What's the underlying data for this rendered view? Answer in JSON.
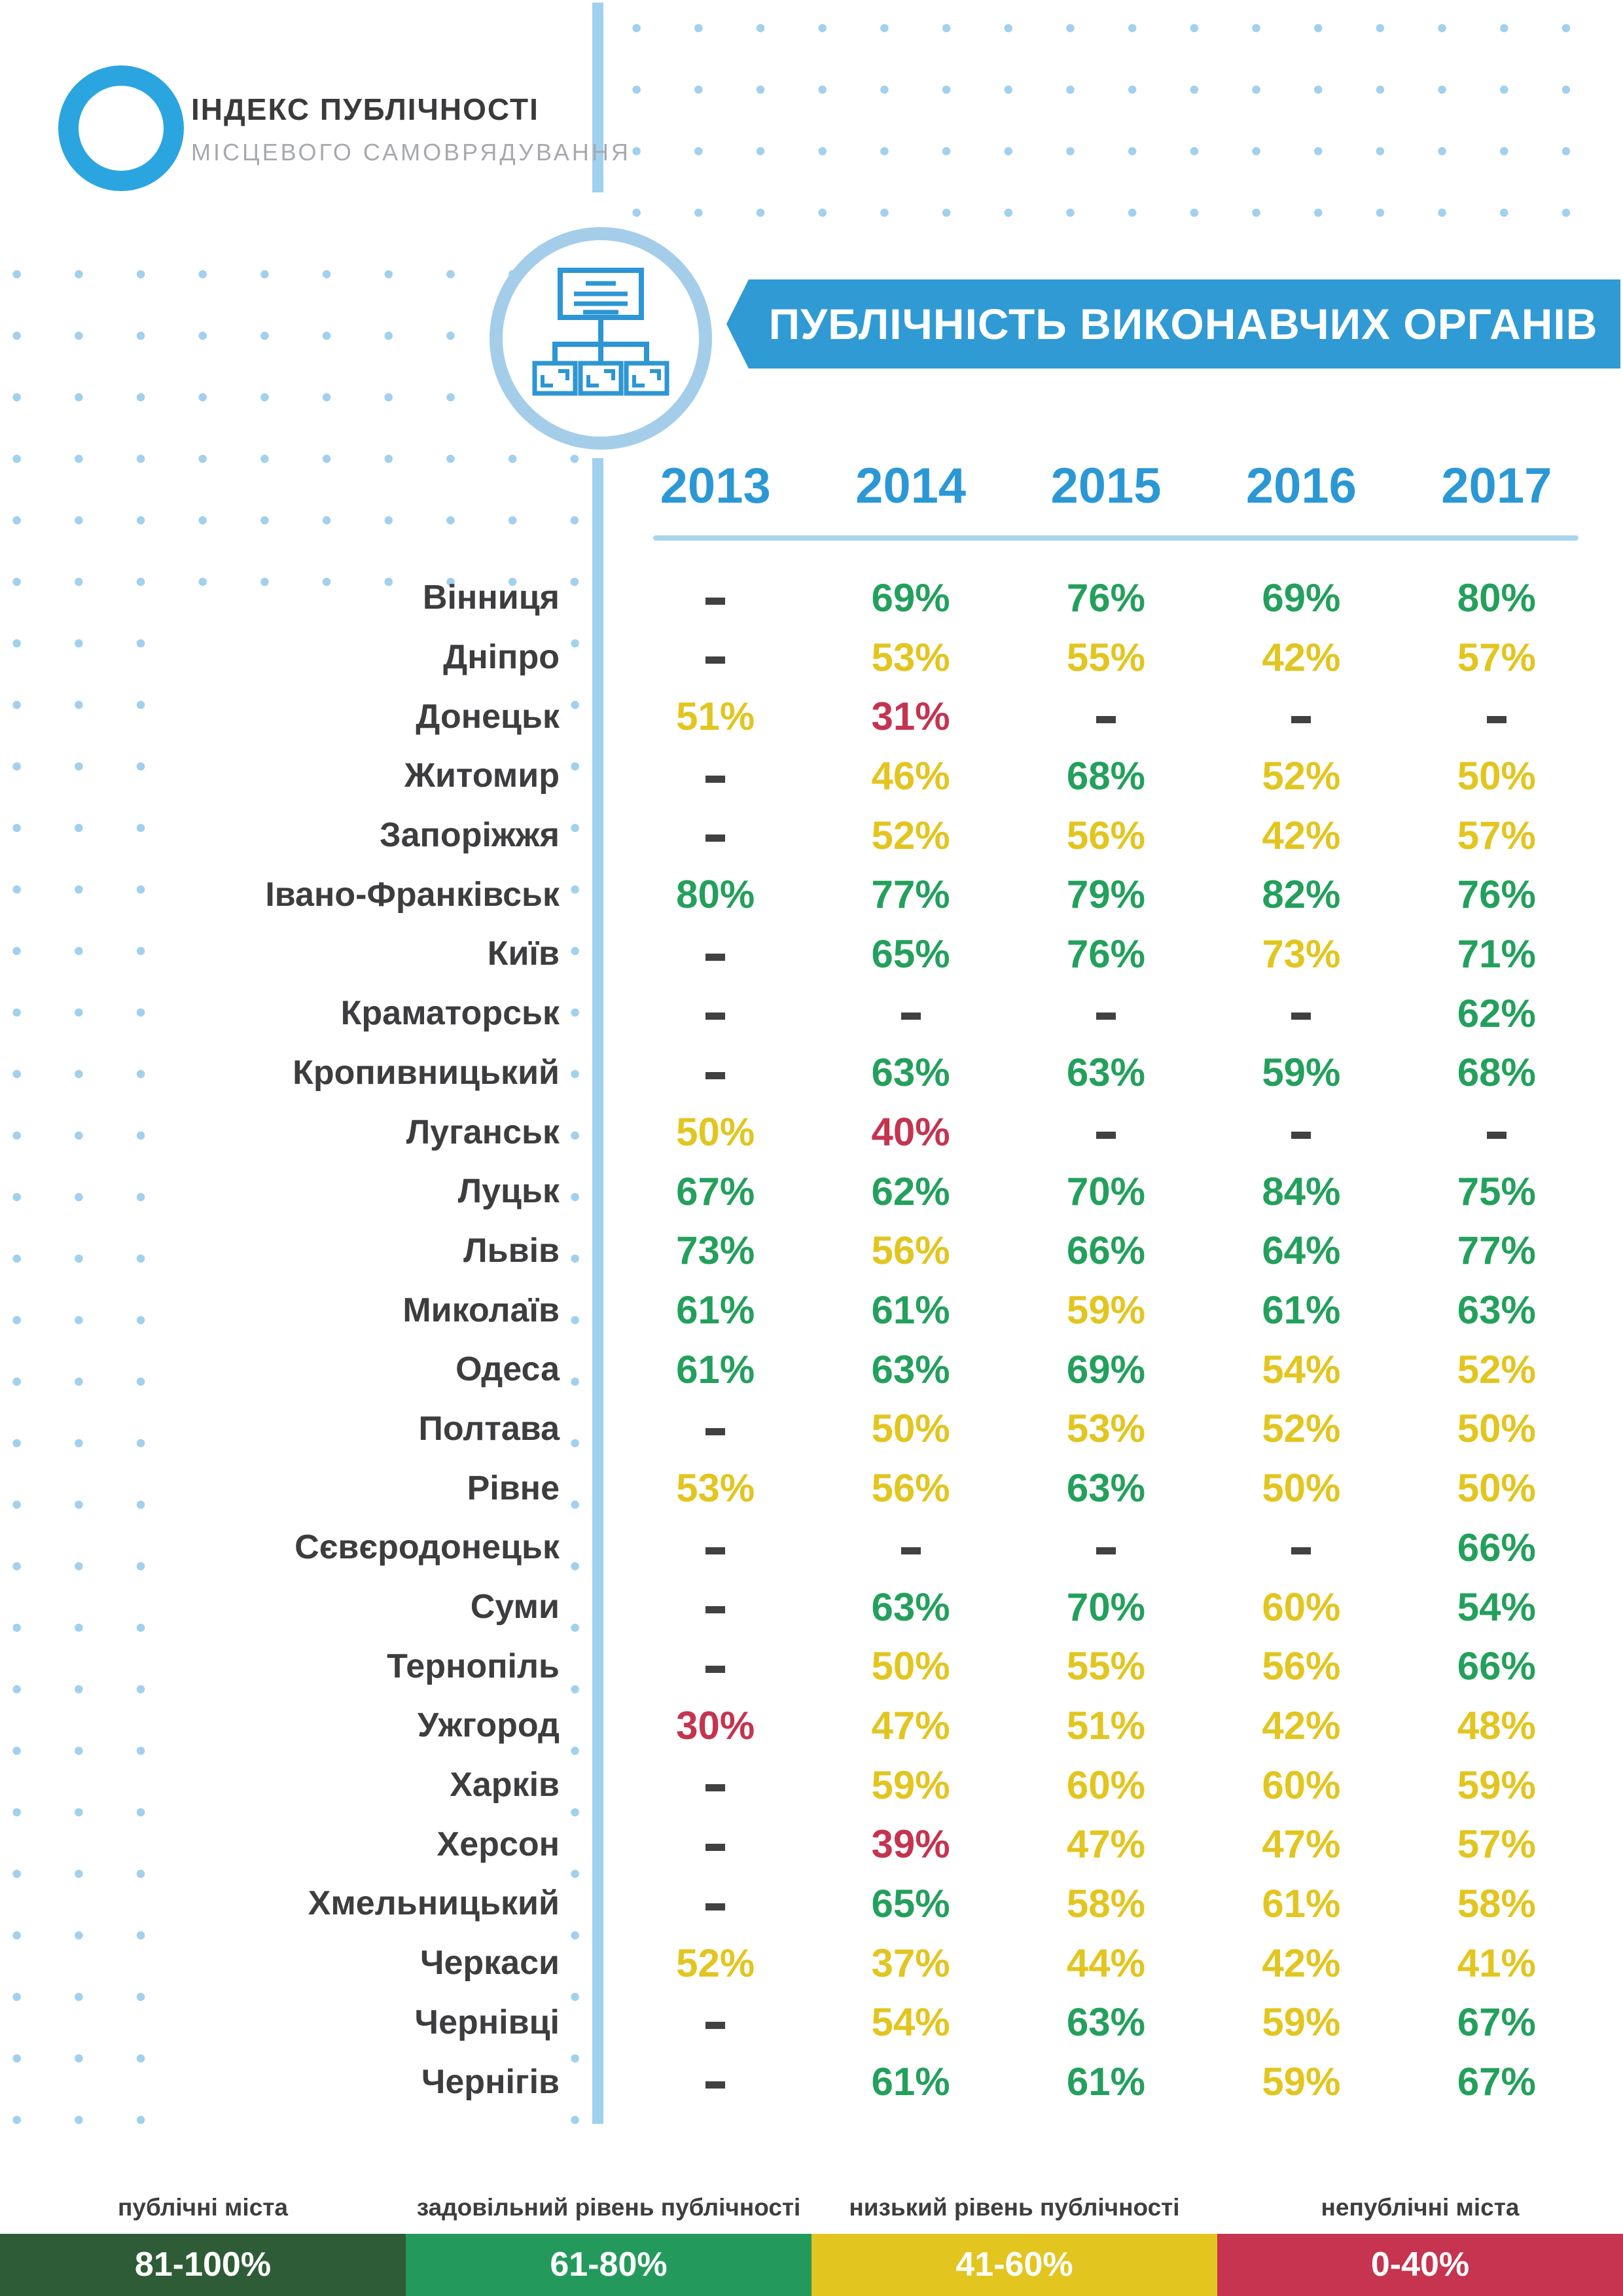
{
  "logo": {
    "line1": "ІНДЕКС ПУБЛІЧНОСТІ",
    "line2": "МІСЦЕВОГО САМОВРЯДУВАННЯ"
  },
  "banner": {
    "title": "ПУБЛІЧНІСТЬ ВИКОНАВЧИХ ОРГАНІВ"
  },
  "table": {
    "years": [
      "2013",
      "2014",
      "2015",
      "2016",
      "2017"
    ],
    "rows": [
      {
        "city": "Вінниця",
        "cells": [
          {
            "v": "-",
            "c": "dash"
          },
          {
            "v": "69%",
            "c": "green"
          },
          {
            "v": "76%",
            "c": "green"
          },
          {
            "v": "69%",
            "c": "green"
          },
          {
            "v": "80%",
            "c": "green"
          }
        ]
      },
      {
        "city": "Дніпро",
        "cells": [
          {
            "v": "-",
            "c": "dash"
          },
          {
            "v": "53%",
            "c": "yellow"
          },
          {
            "v": "55%",
            "c": "yellow"
          },
          {
            "v": "42%",
            "c": "yellow"
          },
          {
            "v": "57%",
            "c": "yellow"
          }
        ]
      },
      {
        "city": "Донецьк",
        "cells": [
          {
            "v": "51%",
            "c": "yellow"
          },
          {
            "v": "31%",
            "c": "red"
          },
          {
            "v": "-",
            "c": "dash"
          },
          {
            "v": "-",
            "c": "dash"
          },
          {
            "v": "-",
            "c": "dash"
          }
        ]
      },
      {
        "city": "Житомир",
        "cells": [
          {
            "v": "-",
            "c": "dash"
          },
          {
            "v": "46%",
            "c": "yellow"
          },
          {
            "v": "68%",
            "c": "green"
          },
          {
            "v": "52%",
            "c": "yellow"
          },
          {
            "v": "50%",
            "c": "yellow"
          }
        ]
      },
      {
        "city": "Запоріжжя",
        "cells": [
          {
            "v": "-",
            "c": "dash"
          },
          {
            "v": "52%",
            "c": "yellow"
          },
          {
            "v": "56%",
            "c": "yellow"
          },
          {
            "v": "42%",
            "c": "yellow"
          },
          {
            "v": "57%",
            "c": "yellow"
          }
        ]
      },
      {
        "city": "Івано-Франківськ",
        "cells": [
          {
            "v": "80%",
            "c": "green"
          },
          {
            "v": "77%",
            "c": "green"
          },
          {
            "v": "79%",
            "c": "green"
          },
          {
            "v": "82%",
            "c": "green"
          },
          {
            "v": "76%",
            "c": "green"
          }
        ]
      },
      {
        "city": "Київ",
        "cells": [
          {
            "v": "-",
            "c": "dash"
          },
          {
            "v": "65%",
            "c": "green"
          },
          {
            "v": "76%",
            "c": "green"
          },
          {
            "v": "73%",
            "c": "yellow"
          },
          {
            "v": "71%",
            "c": "green"
          }
        ]
      },
      {
        "city": "Краматорськ",
        "cells": [
          {
            "v": "-",
            "c": "dash"
          },
          {
            "v": "-",
            "c": "dash"
          },
          {
            "v": "-",
            "c": "dash"
          },
          {
            "v": "-",
            "c": "dash"
          },
          {
            "v": "62%",
            "c": "green"
          }
        ]
      },
      {
        "city": "Кропивницький",
        "cells": [
          {
            "v": "-",
            "c": "dash"
          },
          {
            "v": "63%",
            "c": "green"
          },
          {
            "v": "63%",
            "c": "green"
          },
          {
            "v": "59%",
            "c": "green"
          },
          {
            "v": "68%",
            "c": "green"
          }
        ]
      },
      {
        "city": "Луганськ",
        "cells": [
          {
            "v": "50%",
            "c": "yellow"
          },
          {
            "v": "40%",
            "c": "red"
          },
          {
            "v": "-",
            "c": "dash"
          },
          {
            "v": "-",
            "c": "dash"
          },
          {
            "v": "-",
            "c": "dash"
          }
        ]
      },
      {
        "city": "Луцьк",
        "cells": [
          {
            "v": "67%",
            "c": "green"
          },
          {
            "v": "62%",
            "c": "green"
          },
          {
            "v": "70%",
            "c": "green"
          },
          {
            "v": "84%",
            "c": "green"
          },
          {
            "v": "75%",
            "c": "green"
          }
        ]
      },
      {
        "city": "Львів",
        "cells": [
          {
            "v": "73%",
            "c": "green"
          },
          {
            "v": "56%",
            "c": "yellow"
          },
          {
            "v": "66%",
            "c": "green"
          },
          {
            "v": "64%",
            "c": "green"
          },
          {
            "v": "77%",
            "c": "green"
          }
        ]
      },
      {
        "city": "Миколаїв",
        "cells": [
          {
            "v": "61%",
            "c": "green"
          },
          {
            "v": "61%",
            "c": "green"
          },
          {
            "v": "59%",
            "c": "yellow"
          },
          {
            "v": "61%",
            "c": "green"
          },
          {
            "v": "63%",
            "c": "green"
          }
        ]
      },
      {
        "city": "Одеса",
        "cells": [
          {
            "v": "61%",
            "c": "green"
          },
          {
            "v": "63%",
            "c": "green"
          },
          {
            "v": "69%",
            "c": "green"
          },
          {
            "v": "54%",
            "c": "yellow"
          },
          {
            "v": "52%",
            "c": "yellow"
          }
        ]
      },
      {
        "city": "Полтава",
        "cells": [
          {
            "v": "-",
            "c": "dash"
          },
          {
            "v": "50%",
            "c": "yellow"
          },
          {
            "v": "53%",
            "c": "yellow"
          },
          {
            "v": "52%",
            "c": "yellow"
          },
          {
            "v": "50%",
            "c": "yellow"
          }
        ]
      },
      {
        "city": "Рівне",
        "cells": [
          {
            "v": "53%",
            "c": "yellow"
          },
          {
            "v": "56%",
            "c": "yellow"
          },
          {
            "v": "63%",
            "c": "green"
          },
          {
            "v": "50%",
            "c": "yellow"
          },
          {
            "v": "50%",
            "c": "yellow"
          }
        ]
      },
      {
        "city": "Сєвєродонецьк",
        "cells": [
          {
            "v": "-",
            "c": "dash"
          },
          {
            "v": "-",
            "c": "dash"
          },
          {
            "v": "-",
            "c": "dash"
          },
          {
            "v": "-",
            "c": "dash"
          },
          {
            "v": "66%",
            "c": "green"
          }
        ]
      },
      {
        "city": "Суми",
        "cells": [
          {
            "v": "-",
            "c": "dash"
          },
          {
            "v": "63%",
            "c": "green"
          },
          {
            "v": "70%",
            "c": "green"
          },
          {
            "v": "60%",
            "c": "yellow"
          },
          {
            "v": "54%",
            "c": "green"
          }
        ]
      },
      {
        "city": "Тернопіль",
        "cells": [
          {
            "v": "-",
            "c": "dash"
          },
          {
            "v": "50%",
            "c": "yellow"
          },
          {
            "v": "55%",
            "c": "yellow"
          },
          {
            "v": "56%",
            "c": "yellow"
          },
          {
            "v": "66%",
            "c": "green"
          }
        ]
      },
      {
        "city": "Ужгород",
        "cells": [
          {
            "v": "30%",
            "c": "red"
          },
          {
            "v": "47%",
            "c": "yellow"
          },
          {
            "v": "51%",
            "c": "yellow"
          },
          {
            "v": "42%",
            "c": "yellow"
          },
          {
            "v": "48%",
            "c": "yellow"
          }
        ]
      },
      {
        "city": "Харків",
        "cells": [
          {
            "v": "-",
            "c": "dash"
          },
          {
            "v": "59%",
            "c": "yellow"
          },
          {
            "v": "60%",
            "c": "yellow"
          },
          {
            "v": "60%",
            "c": "yellow"
          },
          {
            "v": "59%",
            "c": "yellow"
          }
        ]
      },
      {
        "city": "Херсон",
        "cells": [
          {
            "v": "-",
            "c": "dash"
          },
          {
            "v": "39%",
            "c": "red"
          },
          {
            "v": "47%",
            "c": "yellow"
          },
          {
            "v": "47%",
            "c": "yellow"
          },
          {
            "v": "57%",
            "c": "yellow"
          }
        ]
      },
      {
        "city": "Хмельницький",
        "cells": [
          {
            "v": "-",
            "c": "dash"
          },
          {
            "v": "65%",
            "c": "green"
          },
          {
            "v": "58%",
            "c": "yellow"
          },
          {
            "v": "61%",
            "c": "yellow"
          },
          {
            "v": "58%",
            "c": "yellow"
          }
        ]
      },
      {
        "city": "Черкаси",
        "cells": [
          {
            "v": "52%",
            "c": "yellow"
          },
          {
            "v": "37%",
            "c": "yellow"
          },
          {
            "v": "44%",
            "c": "yellow"
          },
          {
            "v": "42%",
            "c": "yellow"
          },
          {
            "v": "41%",
            "c": "yellow"
          }
        ]
      },
      {
        "city": "Чернівці",
        "cells": [
          {
            "v": "-",
            "c": "dash"
          },
          {
            "v": "54%",
            "c": "yellow"
          },
          {
            "v": "63%",
            "c": "green"
          },
          {
            "v": "59%",
            "c": "yellow"
          },
          {
            "v": "67%",
            "c": "green"
          }
        ]
      },
      {
        "city": "Чернігів",
        "cells": [
          {
            "v": "-",
            "c": "dash"
          },
          {
            "v": "61%",
            "c": "green"
          },
          {
            "v": "61%",
            "c": "green"
          },
          {
            "v": "59%",
            "c": "yellow"
          },
          {
            "v": "67%",
            "c": "green"
          }
        ]
      }
    ]
  },
  "legend": [
    {
      "label": "публічні міста",
      "range": "81-100%",
      "color": "#2e5c36"
    },
    {
      "label": "задовільний рівень публічності",
      "range": "61-80%",
      "color": "#239a5b"
    },
    {
      "label": "низький рівень публічності",
      "range": "41-60%",
      "color": "#e2c51f"
    },
    {
      "label": "непублічні міста",
      "range": "0-40%",
      "color": "#c6344f"
    }
  ],
  "colors": {
    "value_green": "#23a05c",
    "value_yellow": "#e2c51f",
    "value_red": "#c43450",
    "dash_gray": "#414042",
    "accent_blue": "#2f9ad3",
    "light_blue": "#a2d0ed"
  },
  "icons": {
    "logo_ring": "blue-donut-icon",
    "header_icon": "org-chart-icon"
  },
  "chart_data": {
    "type": "table",
    "title": "ПУБЛІЧНІСТЬ ВИКОНАВЧИХ ОРГАНІВ",
    "columns": [
      "2013",
      "2014",
      "2015",
      "2016",
      "2017"
    ],
    "rows": [
      {
        "city": "Вінниця",
        "values": [
          null,
          69,
          76,
          69,
          80
        ]
      },
      {
        "city": "Дніпро",
        "values": [
          null,
          53,
          55,
          42,
          57
        ]
      },
      {
        "city": "Донецьк",
        "values": [
          51,
          31,
          null,
          null,
          null
        ]
      },
      {
        "city": "Житомир",
        "values": [
          null,
          46,
          68,
          52,
          50
        ]
      },
      {
        "city": "Запоріжжя",
        "values": [
          null,
          52,
          56,
          42,
          57
        ]
      },
      {
        "city": "Івано-Франківськ",
        "values": [
          80,
          77,
          79,
          82,
          76
        ]
      },
      {
        "city": "Київ",
        "values": [
          null,
          65,
          76,
          73,
          71
        ]
      },
      {
        "city": "Краматорськ",
        "values": [
          null,
          null,
          null,
          null,
          62
        ]
      },
      {
        "city": "Кропивницький",
        "values": [
          null,
          63,
          63,
          59,
          68
        ]
      },
      {
        "city": "Луганськ",
        "values": [
          50,
          40,
          null,
          null,
          null
        ]
      },
      {
        "city": "Луцьк",
        "values": [
          67,
          62,
          70,
          84,
          75
        ]
      },
      {
        "city": "Львів",
        "values": [
          73,
          56,
          66,
          64,
          77
        ]
      },
      {
        "city": "Миколаїв",
        "values": [
          61,
          61,
          59,
          61,
          63
        ]
      },
      {
        "city": "Одеса",
        "values": [
          61,
          63,
          69,
          54,
          52
        ]
      },
      {
        "city": "Полтава",
        "values": [
          null,
          50,
          53,
          52,
          50
        ]
      },
      {
        "city": "Рівне",
        "values": [
          53,
          56,
          63,
          50,
          50
        ]
      },
      {
        "city": "Сєвєродонецьк",
        "values": [
          null,
          null,
          null,
          null,
          66
        ]
      },
      {
        "city": "Суми",
        "values": [
          null,
          63,
          70,
          60,
          54
        ]
      },
      {
        "city": "Тернопіль",
        "values": [
          null,
          50,
          55,
          56,
          66
        ]
      },
      {
        "city": "Ужгород",
        "values": [
          30,
          47,
          51,
          42,
          48
        ]
      },
      {
        "city": "Харків",
        "values": [
          null,
          59,
          60,
          60,
          59
        ]
      },
      {
        "city": "Херсон",
        "values": [
          null,
          39,
          47,
          47,
          57
        ]
      },
      {
        "city": "Хмельницький",
        "values": [
          null,
          65,
          58,
          61,
          58
        ]
      },
      {
        "city": "Черкаси",
        "values": [
          52,
          37,
          44,
          42,
          41
        ]
      },
      {
        "city": "Чернівці",
        "values": [
          null,
          54,
          63,
          59,
          67
        ]
      },
      {
        "city": "Чернігів",
        "values": [
          null,
          61,
          61,
          59,
          67
        ]
      }
    ],
    "color_bands": [
      {
        "range": "81-100%",
        "meaning": "публічні міста",
        "color": "#2e5c36"
      },
      {
        "range": "61-80%",
        "meaning": "задовільний рівень публічності",
        "color": "#239a5b"
      },
      {
        "range": "41-60%",
        "meaning": "низький рівень публічності",
        "color": "#e2c51f"
      },
      {
        "range": "0-40%",
        "meaning": "непублічні міста",
        "color": "#c6344f"
      }
    ],
    "legend_position": "bottom",
    "grid": false
  }
}
